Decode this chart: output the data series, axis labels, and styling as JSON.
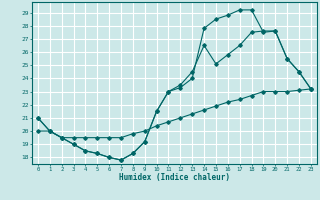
{
  "xlabel": "Humidex (Indice chaleur)",
  "bg_color": "#cce8e8",
  "grid_color": "#ffffff",
  "line_color": "#006666",
  "xlim": [
    -0.5,
    23.5
  ],
  "ylim": [
    17.5,
    29.8
  ],
  "xticks": [
    0,
    1,
    2,
    3,
    4,
    5,
    6,
    7,
    8,
    9,
    10,
    11,
    12,
    13,
    14,
    15,
    16,
    17,
    18,
    19,
    20,
    21,
    22,
    23
  ],
  "yticks": [
    18,
    19,
    20,
    21,
    22,
    23,
    24,
    25,
    26,
    27,
    28,
    29
  ],
  "line1_x": [
    0,
    1,
    2,
    3,
    4,
    5,
    6,
    7,
    8,
    9,
    10,
    11,
    12,
    13,
    14,
    15,
    16,
    17,
    18,
    19,
    20,
    21,
    22,
    23
  ],
  "line1_y": [
    21.0,
    20.0,
    19.5,
    19.0,
    18.5,
    18.3,
    18.0,
    17.8,
    18.3,
    19.2,
    21.5,
    23.0,
    23.3,
    24.0,
    27.8,
    28.5,
    28.8,
    29.2,
    29.2,
    27.5,
    27.6,
    25.5,
    24.5,
    23.2
  ],
  "line2_x": [
    0,
    1,
    2,
    3,
    4,
    5,
    6,
    7,
    8,
    9,
    10,
    11,
    12,
    13,
    14,
    15,
    16,
    17,
    18,
    19,
    20,
    21,
    22,
    23
  ],
  "line2_y": [
    21.0,
    20.0,
    19.5,
    19.0,
    18.5,
    18.3,
    18.0,
    17.8,
    18.3,
    19.2,
    21.5,
    23.0,
    23.5,
    24.5,
    26.5,
    25.1,
    25.8,
    26.5,
    27.5,
    27.6,
    27.6,
    25.5,
    24.5,
    23.2
  ],
  "line3_x": [
    0,
    1,
    2,
    3,
    4,
    5,
    6,
    7,
    8,
    9,
    10,
    11,
    12,
    13,
    14,
    15,
    16,
    17,
    18,
    19,
    20,
    21,
    22,
    23
  ],
  "line3_y": [
    20.0,
    20.0,
    19.5,
    19.5,
    19.5,
    19.5,
    19.5,
    19.5,
    19.8,
    20.0,
    20.4,
    20.7,
    21.0,
    21.3,
    21.6,
    21.9,
    22.2,
    22.4,
    22.7,
    23.0,
    23.0,
    23.0,
    23.1,
    23.2
  ]
}
